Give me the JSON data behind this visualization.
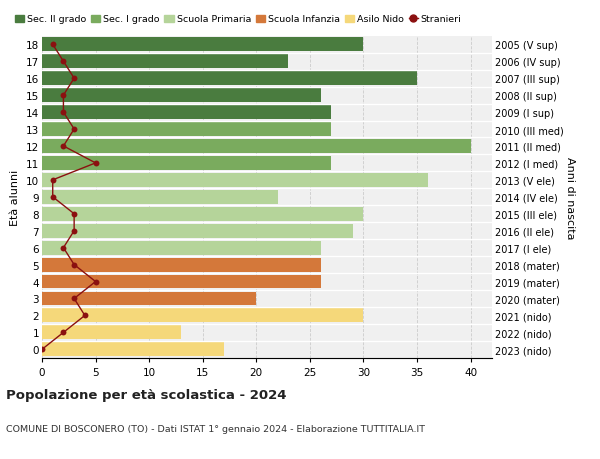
{
  "ages": [
    18,
    17,
    16,
    15,
    14,
    13,
    12,
    11,
    10,
    9,
    8,
    7,
    6,
    5,
    4,
    3,
    2,
    1,
    0
  ],
  "years_labels": [
    "2005 (V sup)",
    "2006 (IV sup)",
    "2007 (III sup)",
    "2008 (II sup)",
    "2009 (I sup)",
    "2010 (III med)",
    "2011 (II med)",
    "2012 (I med)",
    "2013 (V ele)",
    "2014 (IV ele)",
    "2015 (III ele)",
    "2016 (II ele)",
    "2017 (I ele)",
    "2018 (mater)",
    "2019 (mater)",
    "2020 (mater)",
    "2021 (nido)",
    "2022 (nido)",
    "2023 (nido)"
  ],
  "bar_values": [
    30,
    23,
    35,
    26,
    27,
    27,
    40,
    27,
    36,
    22,
    30,
    29,
    26,
    26,
    26,
    20,
    30,
    13,
    17
  ],
  "bar_colors": [
    "#4a7c3f",
    "#4a7c3f",
    "#4a7c3f",
    "#4a7c3f",
    "#4a7c3f",
    "#7aab5e",
    "#7aab5e",
    "#7aab5e",
    "#b5d49a",
    "#b5d49a",
    "#b5d49a",
    "#b5d49a",
    "#b5d49a",
    "#d4783a",
    "#d4783a",
    "#d4783a",
    "#f5d87a",
    "#f5d87a",
    "#f5d87a"
  ],
  "stranieri_values": [
    1,
    2,
    3,
    2,
    2,
    3,
    2,
    5,
    1,
    1,
    3,
    3,
    2,
    3,
    5,
    3,
    4,
    2,
    0
  ],
  "legend_labels": [
    "Sec. II grado",
    "Sec. I grado",
    "Scuola Primaria",
    "Scuola Infanzia",
    "Asilo Nido",
    "Stranieri"
  ],
  "legend_colors": [
    "#4a7c3f",
    "#7aab5e",
    "#b5d49a",
    "#d4783a",
    "#f5d87a",
    "#8b1010"
  ],
  "title": "Popolazione per età scolastica - 2024",
  "subtitle": "COMUNE DI BOSCONERO (TO) - Dati ISTAT 1° gennaio 2024 - Elaborazione TUTTITALIA.IT",
  "ylabel_left": "Età alunni",
  "ylabel_right": "Anni di nascita",
  "xlim": [
    0,
    42
  ],
  "background_color": "#ffffff",
  "plot_bg": "#f0f0f0"
}
